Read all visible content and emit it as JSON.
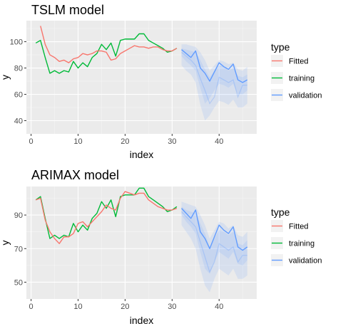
{
  "chart_data": [
    {
      "type": "line",
      "title": "TSLM model",
      "xlabel": "index",
      "ylabel": "y",
      "xlim": [
        -1,
        48
      ],
      "ylim": [
        30,
        116
      ],
      "x_ticks": [
        0,
        10,
        20,
        30,
        40
      ],
      "y_ticks": [
        40,
        60,
        80,
        100
      ],
      "grid": true,
      "legend": {
        "title": "type",
        "position": "right",
        "entries": [
          "Fitted",
          "training",
          "validation"
        ]
      },
      "series": [
        {
          "name": "training",
          "color": "#00BA38",
          "x": [
            1,
            2,
            3,
            4,
            5,
            6,
            7,
            8,
            9,
            10,
            11,
            12,
            13,
            14,
            15,
            16,
            17,
            18,
            19,
            20,
            21,
            22,
            23,
            24,
            25,
            26,
            27,
            28,
            29,
            30,
            31
          ],
          "values": [
            99,
            101,
            88,
            76,
            78,
            76,
            78,
            77,
            85,
            80,
            84,
            81,
            88,
            91,
            98,
            94,
            99,
            89,
            101,
            102,
            102,
            102,
            106,
            106,
            101,
            99,
            97,
            95,
            92,
            93,
            95
          ]
        },
        {
          "name": "Fitted",
          "color": "#F8766D",
          "x": [
            2,
            3,
            4,
            5,
            6,
            7,
            8,
            9,
            10,
            11,
            12,
            13,
            14,
            15,
            16,
            17,
            18,
            19,
            20,
            21,
            22,
            23,
            24,
            25,
            26,
            27,
            28,
            29,
            30,
            31
          ],
          "values": [
            112,
            98,
            90,
            88,
            85,
            86,
            84,
            87,
            88,
            91,
            90,
            91,
            93,
            93,
            92,
            86,
            87,
            91,
            93,
            95,
            97,
            96,
            96,
            95,
            96,
            96,
            94,
            93,
            93,
            95
          ]
        },
        {
          "name": "validation",
          "color": "#619CFF",
          "x": [
            32,
            33,
            34,
            35,
            36,
            37,
            38,
            39,
            40,
            41,
            42,
            43,
            44,
            45,
            46
          ],
          "values": [
            94,
            91,
            88,
            93,
            80,
            76,
            70,
            77,
            84,
            81,
            79,
            83,
            71,
            69,
            71
          ],
          "lower": [
            82,
            78,
            75,
            69,
            52,
            40,
            44,
            50,
            55,
            54,
            52,
            56,
            50,
            50,
            53
          ],
          "upper": [
            98,
            98,
            97,
            96,
            92,
            86,
            78,
            82,
            86,
            85,
            83,
            84,
            79,
            78,
            81
          ],
          "lower80": [
            89,
            85,
            82,
            78,
            65,
            53,
            57,
            63,
            68,
            67,
            65,
            68,
            60,
            60,
            63
          ],
          "upper80": [
            95,
            94,
            93,
            92,
            86,
            79,
            73,
            78,
            82,
            81,
            78,
            80,
            74,
            73,
            75
          ],
          "center": [
            92,
            89,
            86,
            82,
            72,
            63,
            53,
            58,
            73,
            71,
            69,
            71,
            58,
            67,
            67
          ]
        }
      ]
    },
    {
      "type": "line",
      "title": "ARIMAX model",
      "xlabel": "index",
      "ylabel": "y",
      "xlim": [
        -1,
        48
      ],
      "ylim": [
        40,
        107
      ],
      "x_ticks": [
        0,
        10,
        20,
        30,
        40
      ],
      "y_ticks": [
        50,
        70,
        90
      ],
      "grid": true,
      "legend": {
        "title": "type",
        "position": "right",
        "entries": [
          "Fitted",
          "training",
          "validation"
        ]
      },
      "series": [
        {
          "name": "training",
          "color": "#00BA38",
          "x": [
            1,
            2,
            3,
            4,
            5,
            6,
            7,
            8,
            9,
            10,
            11,
            12,
            13,
            14,
            15,
            16,
            17,
            18,
            19,
            20,
            21,
            22,
            23,
            24,
            25,
            26,
            27,
            28,
            29,
            30,
            31
          ],
          "values": [
            99,
            101,
            88,
            76,
            78,
            76,
            78,
            77,
            85,
            80,
            84,
            81,
            88,
            91,
            98,
            94,
            99,
            89,
            101,
            102,
            102,
            102,
            106,
            106,
            101,
            99,
            97,
            95,
            92,
            93,
            95
          ]
        },
        {
          "name": "Fitted",
          "color": "#F8766D",
          "x": [
            1,
            2,
            3,
            4,
            5,
            6,
            7,
            8,
            9,
            10,
            11,
            12,
            13,
            14,
            15,
            16,
            17,
            18,
            19,
            20,
            21,
            22,
            23,
            24,
            25,
            26,
            27,
            28,
            29,
            30,
            31
          ],
          "values": [
            99,
            100,
            87,
            80,
            76,
            73,
            77,
            77,
            79,
            85,
            86,
            83,
            86,
            89,
            92,
            96,
            94,
            93,
            100,
            104,
            103,
            102,
            103,
            103,
            99,
            97,
            95,
            94,
            93,
            93,
            94
          ]
        },
        {
          "name": "validation",
          "color": "#619CFF",
          "x": [
            32,
            33,
            34,
            35,
            36,
            37,
            38,
            39,
            40,
            41,
            42,
            43,
            44,
            45,
            46
          ],
          "values": [
            94,
            91,
            88,
            93,
            80,
            76,
            70,
            77,
            84,
            81,
            79,
            83,
            71,
            69,
            71
          ],
          "lower": [
            84,
            80,
            76,
            70,
            58,
            48,
            44,
            52,
            58,
            56,
            54,
            58,
            52,
            52,
            54
          ],
          "upper": [
            98,
            97,
            96,
            95,
            90,
            84,
            76,
            81,
            86,
            85,
            82,
            84,
            78,
            77,
            80
          ],
          "lower80": [
            90,
            86,
            83,
            79,
            68,
            58,
            55,
            62,
            68,
            66,
            64,
            68,
            61,
            60,
            63
          ],
          "upper80": [
            95,
            93,
            92,
            91,
            85,
            79,
            71,
            76,
            81,
            80,
            78,
            80,
            73,
            72,
            75
          ],
          "center": [
            92,
            89,
            86,
            83,
            74,
            65,
            56,
            62,
            73,
            71,
            69,
            71,
            62,
            66,
            66
          ]
        }
      ]
    }
  ]
}
